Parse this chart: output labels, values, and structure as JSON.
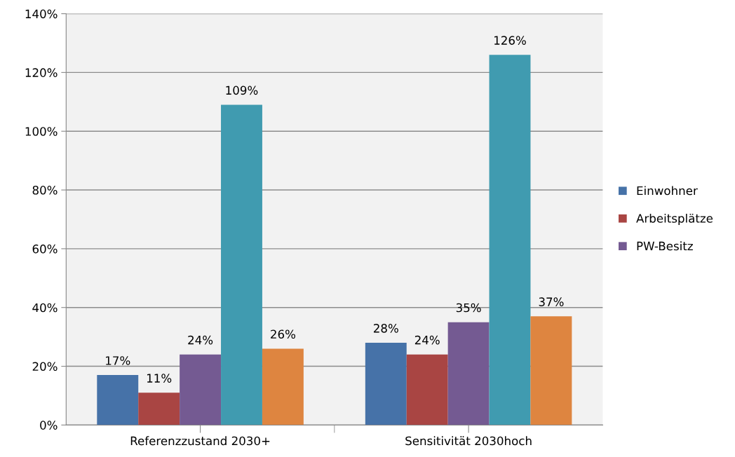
{
  "chart_data": {
    "type": "bar",
    "categories": [
      "Referenzzustand 2030+",
      "Sensitivität 2030hoch"
    ],
    "series": [
      {
        "name": "Einwohner",
        "color": "#4672a8",
        "values": [
          17,
          28
        ]
      },
      {
        "name": "Arbeitsplätze",
        "color": "#a94543",
        "values": [
          11,
          24
        ]
      },
      {
        "name": "PW-Besitz",
        "color": "#745a92",
        "values": [
          24,
          35
        ]
      },
      {
        "color": "#409bb0",
        "values": [
          109,
          126
        ]
      },
      {
        "color": "#de8540",
        "values": [
          26,
          37
        ]
      }
    ],
    "ylim": [
      0,
      140
    ],
    "yticks": [
      {
        "value": 0,
        "label": "0%"
      },
      {
        "value": 20,
        "label": "20%"
      },
      {
        "value": 40,
        "label": "40%"
      },
      {
        "value": 60,
        "label": "60%"
      },
      {
        "value": 80,
        "label": "80%"
      },
      {
        "value": 100,
        "label": "100%"
      },
      {
        "value": 120,
        "label": "120%"
      },
      {
        "value": 140,
        "label": "140%"
      }
    ],
    "value_labels": [
      [
        "17%",
        "28%"
      ],
      [
        "11%",
        "24%"
      ],
      [
        "24%",
        "35%"
      ],
      [
        "109%",
        "126%"
      ],
      [
        "26%",
        "37%"
      ]
    ],
    "grid": "y",
    "legend": "right"
  }
}
